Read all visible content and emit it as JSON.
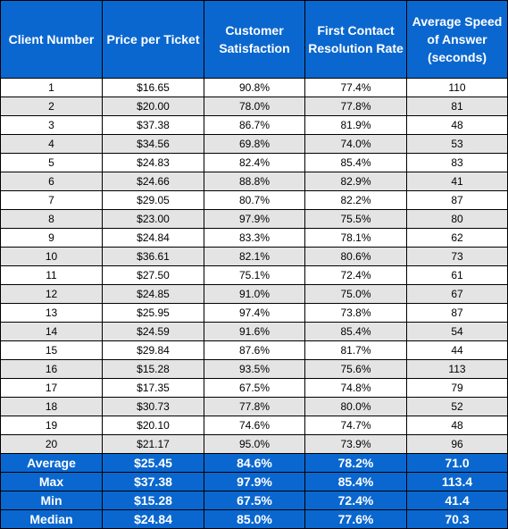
{
  "header": {
    "client_number": "Client Number",
    "price_per_ticket": "Price per Ticket",
    "customer_satisfaction": "Customer Satisfaction",
    "first_contact_resolution_rate": "First Contact Resolution Rate",
    "average_speed_of_answer": "Average Speed of Answer (seconds)"
  },
  "rows": [
    [
      "1",
      "$16.65",
      "90.8%",
      "77.4%",
      "110"
    ],
    [
      "2",
      "$20.00",
      "78.0%",
      "77.8%",
      "81"
    ],
    [
      "3",
      "$37.38",
      "86.7%",
      "81.9%",
      "48"
    ],
    [
      "4",
      "$34.56",
      "69.8%",
      "74.0%",
      "53"
    ],
    [
      "5",
      "$24.83",
      "82.4%",
      "85.4%",
      "83"
    ],
    [
      "6",
      "$24.66",
      "88.8%",
      "82.9%",
      "41"
    ],
    [
      "7",
      "$29.05",
      "80.7%",
      "82.2%",
      "87"
    ],
    [
      "8",
      "$23.00",
      "97.9%",
      "75.5%",
      "80"
    ],
    [
      "9",
      "$24.84",
      "83.3%",
      "78.1%",
      "62"
    ],
    [
      "10",
      "$36.61",
      "82.1%",
      "80.6%",
      "73"
    ],
    [
      "11",
      "$27.50",
      "75.1%",
      "72.4%",
      "61"
    ],
    [
      "12",
      "$24.85",
      "91.0%",
      "75.0%",
      "67"
    ],
    [
      "13",
      "$25.95",
      "97.4%",
      "73.8%",
      "87"
    ],
    [
      "14",
      "$24.59",
      "91.6%",
      "85.4%",
      "54"
    ],
    [
      "15",
      "$29.84",
      "87.6%",
      "81.7%",
      "44"
    ],
    [
      "16",
      "$15.28",
      "93.5%",
      "75.6%",
      "113"
    ],
    [
      "17",
      "$17.35",
      "67.5%",
      "74.8%",
      "79"
    ],
    [
      "18",
      "$30.73",
      "77.8%",
      "80.0%",
      "52"
    ],
    [
      "19",
      "$20.10",
      "74.6%",
      "74.7%",
      "48"
    ],
    [
      "20",
      "$21.17",
      "95.0%",
      "73.9%",
      "96"
    ]
  ],
  "summary": [
    [
      "Average",
      "$25.45",
      "84.6%",
      "78.2%",
      "71.0"
    ],
    [
      "Max",
      "$37.38",
      "97.9%",
      "85.4%",
      "113.4"
    ],
    [
      "Min",
      "$15.28",
      "67.5%",
      "72.4%",
      "41.4"
    ],
    [
      "Median",
      "$24.84",
      "85.0%",
      "77.6%",
      "70.3"
    ]
  ],
  "colors": {
    "header_bg": "#0a67cf",
    "header_text": "#ffffff",
    "row_alt_bg": "#e4e4e4",
    "border": "#000000"
  }
}
